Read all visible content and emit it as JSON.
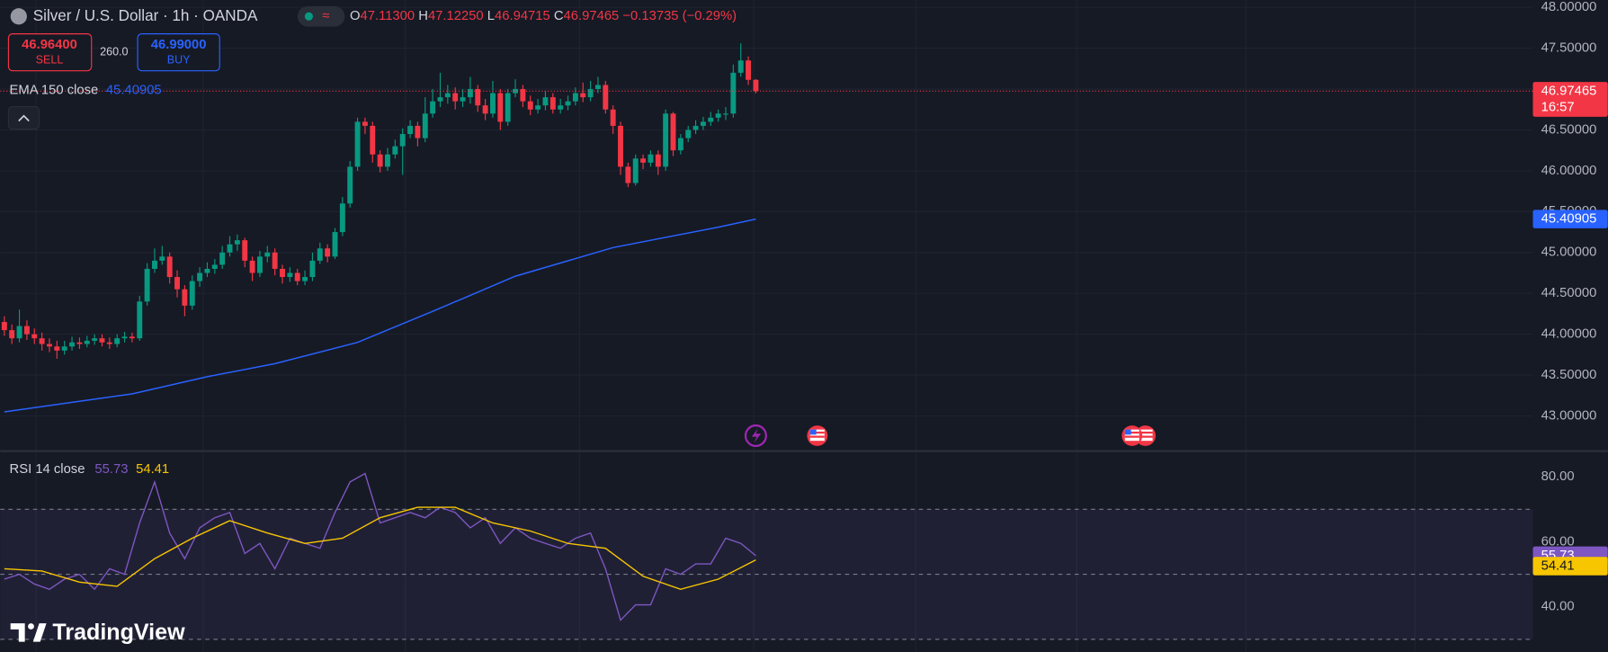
{
  "header": {
    "symbol": "Silver / U.S. Dollar · 1h · OANDA",
    "ohlc": [
      {
        "key": "O",
        "value": "47.11300"
      },
      {
        "key": "H",
        "value": "47.12250"
      },
      {
        "key": "L",
        "value": "46.94715"
      },
      {
        "key": "C",
        "value": "46.97465"
      }
    ],
    "change": "−0.13735 (−0.29%)"
  },
  "trade": {
    "sell_price": "46.96400",
    "sell": "SELL",
    "spread": "260.0",
    "buy_price": "46.99000",
    "buy": "BUY"
  },
  "countdown": "16:57",
  "brand": "TradingView",
  "chart_data": [
    {
      "type": "candlestick",
      "up_color": "#089981",
      "down_color": "#f23645",
      "grid": true,
      "ylim": [
        42.57,
        48.09
      ],
      "yticks": [
        {
          "value": 43,
          "label": "43.00000"
        },
        {
          "value": 43.5,
          "label": "43.50000"
        },
        {
          "value": 44,
          "label": "44.00000"
        },
        {
          "value": 44.5,
          "label": "44.50000"
        },
        {
          "value": 45,
          "label": "45.00000"
        },
        {
          "value": 45.5,
          "label": "45.50000"
        },
        {
          "value": 46,
          "label": "46.00000"
        },
        {
          "value": 46.5,
          "label": "46.50000"
        },
        {
          "value": 47,
          "label": "47.00000"
        },
        {
          "value": 47.5,
          "label": "47.50000"
        },
        {
          "value": 48,
          "label": "48.00000"
        }
      ],
      "open": [
        44.15,
        44.05,
        43.95,
        44.1,
        44.0,
        43.95,
        43.88,
        43.85,
        43.8,
        43.85,
        43.9,
        43.88,
        43.92,
        43.95,
        43.9,
        43.88,
        43.95,
        43.97,
        43.95,
        44.4,
        44.8,
        44.9,
        44.95,
        44.7,
        44.55,
        44.35,
        44.65,
        44.75,
        44.8,
        44.85,
        45.0,
        45.1,
        45.15,
        44.9,
        44.75,
        44.95,
        45.0,
        44.8,
        44.7,
        44.75,
        44.65,
        44.7,
        44.9,
        45.05,
        44.95,
        45.25,
        45.6,
        46.05,
        46.6,
        46.55,
        46.2,
        46.05,
        46.2,
        46.3,
        46.45,
        46.55,
        46.4,
        46.7,
        46.85,
        46.9,
        46.95,
        46.85,
        46.9,
        47.0,
        46.8,
        46.7,
        46.95,
        46.6,
        46.95,
        47.0,
        46.85,
        46.75,
        46.8,
        46.9,
        46.75,
        46.8,
        46.85,
        46.95,
        46.9,
        47.0,
        47.05,
        46.75,
        46.55,
        46.05,
        45.85,
        46.15,
        46.1,
        46.2,
        46.05,
        46.7,
        46.25,
        46.4,
        46.5,
        46.55,
        46.6,
        46.65,
        46.7,
        46.7,
        47.2,
        47.35,
        47.113
      ],
      "high": [
        44.22,
        44.12,
        44.3,
        44.17,
        44.07,
        44.02,
        43.95,
        43.92,
        43.92,
        43.97,
        43.96,
        43.98,
        44.0,
        44.0,
        43.96,
        44.0,
        44.03,
        44.02,
        44.47,
        44.87,
        45.05,
        45.08,
        45.0,
        44.78,
        44.6,
        44.72,
        44.82,
        44.88,
        44.92,
        45.08,
        45.2,
        45.22,
        45.18,
        44.95,
        45.02,
        45.08,
        45.05,
        44.85,
        44.82,
        44.8,
        44.78,
        45.0,
        45.12,
        45.1,
        45.3,
        45.68,
        46.12,
        46.65,
        46.65,
        46.6,
        46.25,
        46.28,
        46.38,
        46.52,
        46.62,
        46.6,
        46.9,
        47.0,
        47.2,
        47.05,
        47.02,
        47.0,
        47.15,
        47.05,
        46.88,
        47.1,
        47.0,
        47.0,
        47.12,
        47.05,
        46.92,
        46.88,
        46.98,
        46.95,
        46.88,
        46.92,
        47.02,
        47.08,
        47.1,
        47.15,
        47.1,
        46.8,
        46.6,
        46.1,
        46.2,
        46.2,
        46.25,
        46.25,
        46.75,
        46.72,
        46.45,
        46.55,
        46.62,
        46.66,
        46.72,
        46.75,
        46.78,
        47.3,
        47.56,
        47.4,
        47.1225
      ],
      "low": [
        43.98,
        43.88,
        43.9,
        43.93,
        43.88,
        43.8,
        43.78,
        43.7,
        43.75,
        43.8,
        43.82,
        43.84,
        43.87,
        43.85,
        43.82,
        43.84,
        43.9,
        43.9,
        43.92,
        44.35,
        44.75,
        44.85,
        44.62,
        44.45,
        44.22,
        44.3,
        44.58,
        44.7,
        44.74,
        44.8,
        44.95,
        45.02,
        44.82,
        44.65,
        44.7,
        44.88,
        44.72,
        44.62,
        44.64,
        44.6,
        44.6,
        44.65,
        44.86,
        44.88,
        44.92,
        45.2,
        45.55,
        46.0,
        46.45,
        46.1,
        45.98,
        46.0,
        46.15,
        45.95,
        46.4,
        46.3,
        46.35,
        46.65,
        46.78,
        46.82,
        46.75,
        46.78,
        46.82,
        46.72,
        46.62,
        46.65,
        46.5,
        46.55,
        46.9,
        46.78,
        46.68,
        46.7,
        46.74,
        46.7,
        46.7,
        46.74,
        46.8,
        46.84,
        46.85,
        46.95,
        46.7,
        46.45,
        45.95,
        45.8,
        45.82,
        46.02,
        46.05,
        45.95,
        46.0,
        46.18,
        46.2,
        46.35,
        46.45,
        46.5,
        46.55,
        46.6,
        46.62,
        46.65,
        47.15,
        47.05,
        46.94715
      ],
      "close": [
        44.05,
        43.95,
        44.1,
        44.0,
        43.95,
        43.88,
        43.85,
        43.8,
        43.85,
        43.9,
        43.88,
        43.92,
        43.95,
        43.9,
        43.88,
        43.95,
        43.97,
        43.95,
        44.4,
        44.8,
        44.9,
        44.95,
        44.7,
        44.55,
        44.35,
        44.65,
        44.75,
        44.8,
        44.85,
        45.0,
        45.1,
        45.15,
        44.9,
        44.75,
        44.95,
        45.0,
        44.8,
        44.7,
        44.75,
        44.65,
        44.7,
        44.9,
        45.05,
        44.95,
        45.25,
        45.6,
        46.05,
        46.6,
        46.55,
        46.2,
        46.05,
        46.2,
        46.3,
        46.45,
        46.55,
        46.4,
        46.7,
        46.85,
        46.9,
        46.95,
        46.85,
        46.9,
        47.0,
        46.8,
        46.7,
        46.95,
        46.6,
        46.95,
        47.0,
        46.85,
        46.75,
        46.8,
        46.9,
        46.75,
        46.8,
        46.85,
        46.95,
        46.9,
        47.0,
        47.05,
        46.75,
        46.55,
        46.05,
        45.85,
        46.15,
        46.1,
        46.2,
        46.05,
        46.7,
        46.25,
        46.4,
        46.5,
        46.55,
        46.6,
        46.65,
        46.7,
        46.7,
        47.2,
        47.35,
        47.113,
        46.97465
      ],
      "overlays": [
        {
          "name": "EMA 150 close",
          "color": "#2962ff",
          "x": [
            0,
            17,
            27,
            36,
            47,
            57,
            68,
            81,
            95,
            100
          ],
          "values": [
            43.05,
            43.27,
            43.48,
            43.64,
            43.9,
            44.28,
            44.71,
            45.06,
            45.31,
            45.40905
          ]
        }
      ]
    },
    {
      "type": "line",
      "title": "RSI 14 close",
      "ylim": [
        26.1,
        87.9
      ],
      "yticks": [
        {
          "value": 40,
          "label": "40.00"
        },
        {
          "value": 60,
          "label": "60.00"
        },
        {
          "value": 80,
          "label": "80.00"
        }
      ],
      "levels": [
        30,
        50,
        70
      ],
      "series": [
        {
          "color": "#7e57c2",
          "x": [
            0,
            2,
            4,
            6,
            8,
            10,
            12,
            14,
            16,
            18,
            20,
            22,
            24,
            26,
            28,
            30,
            32,
            34,
            36,
            38,
            40,
            42,
            44,
            46,
            48,
            50,
            52,
            54,
            56,
            58,
            60,
            62,
            64,
            66,
            68,
            70,
            72,
            74,
            76,
            78,
            80,
            82,
            84,
            86,
            88,
            90,
            92,
            94,
            96,
            98,
            100
          ],
          "values": [
            48.5,
            50,
            47,
            45.4,
            48.5,
            50,
            45.4,
            51.7,
            50,
            65.8,
            78.4,
            62.7,
            54.8,
            64.3,
            67.4,
            69,
            56.4,
            59.5,
            51.7,
            61.1,
            59.5,
            58,
            69,
            78.4,
            81,
            65.8,
            67.4,
            69,
            67.4,
            70.6,
            69,
            64.3,
            67.4,
            59.5,
            64.3,
            61.1,
            59.5,
            58,
            61.1,
            62.7,
            51.7,
            35.9,
            40.6,
            40.6,
            51.7,
            50,
            53.2,
            53.2,
            61.1,
            59.5,
            55.73
          ]
        },
        {
          "color": "#f7c600",
          "x": [
            0,
            5,
            10,
            15,
            20,
            25,
            30,
            35,
            40,
            45,
            50,
            55,
            60,
            65,
            70,
            75,
            80,
            85,
            90,
            95,
            100
          ],
          "values": [
            51.7,
            51,
            47.6,
            46.3,
            54.8,
            61.1,
            66.5,
            62.7,
            59.5,
            61.1,
            67.4,
            70.6,
            70.6,
            65.8,
            63.3,
            59.5,
            58,
            49.4,
            45.4,
            48.5,
            54.41
          ]
        }
      ]
    }
  ]
}
